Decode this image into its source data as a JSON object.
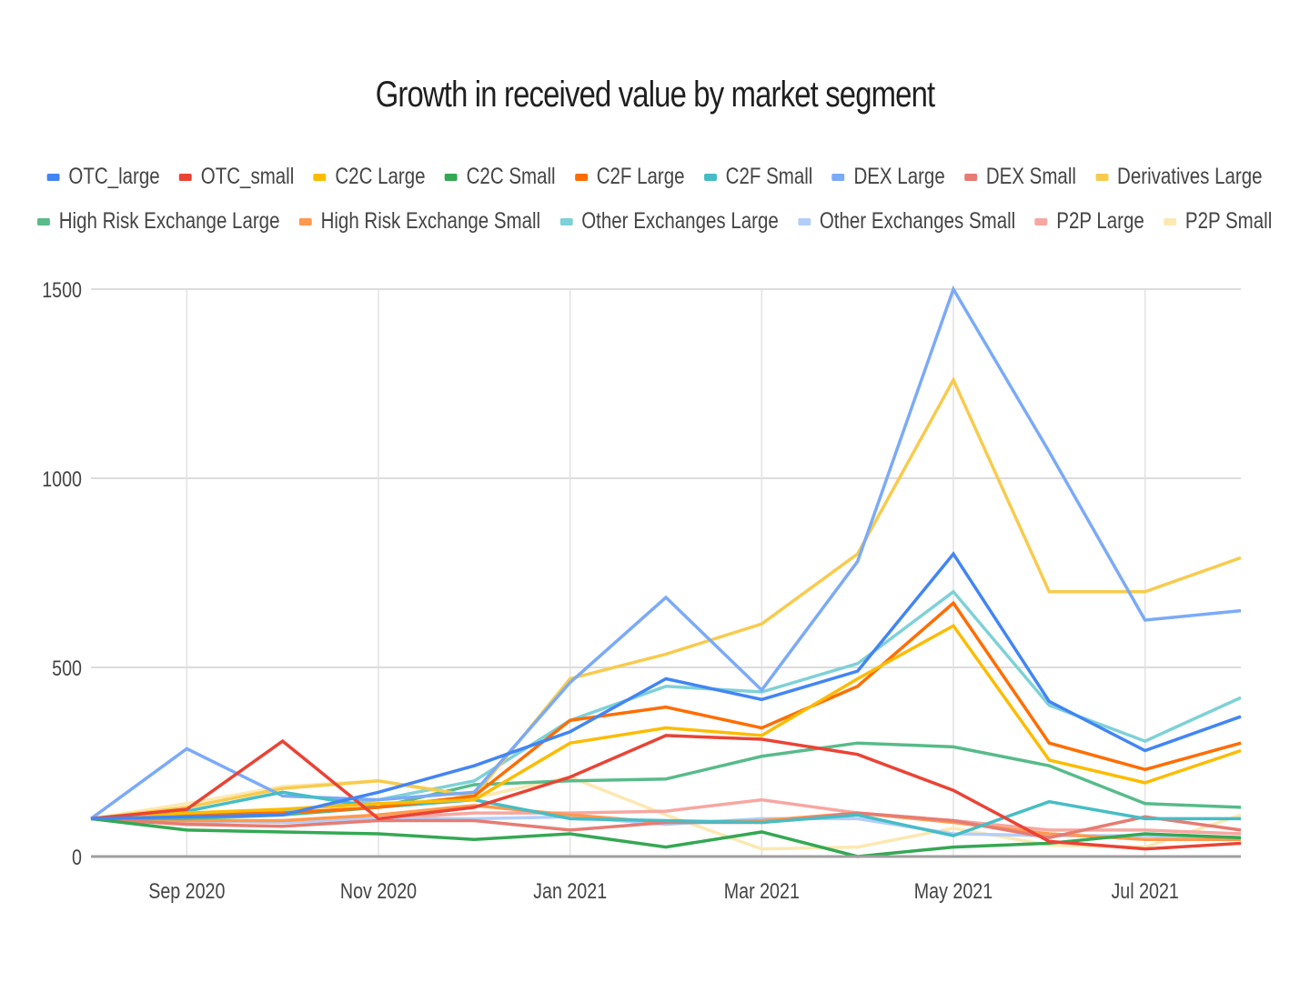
{
  "chart_data": {
    "type": "line",
    "title": "Growth in received value by market segment",
    "xlabel": "",
    "ylabel": "",
    "ylim": [
      0,
      1500
    ],
    "yticks": [
      "0",
      "500",
      "1000",
      "1500"
    ],
    "ytick_values": [
      0,
      500,
      1000,
      1500
    ],
    "grid": true,
    "legend_position": "top",
    "x": [
      "Aug 2020",
      "Sep 2020",
      "Oct 2020",
      "Nov 2020",
      "Dec 2020",
      "Jan 2021",
      "Feb 2021",
      "Mar 2021",
      "Apr 2021",
      "May 2021",
      "Jun 2021",
      "Jul 2021",
      "Aug 2021"
    ],
    "xtick_labels": [
      {
        "index": 1,
        "label": "Sep 2020"
      },
      {
        "index": 3,
        "label": "Nov 2020"
      },
      {
        "index": 5,
        "label": "Jan 2021"
      },
      {
        "index": 7,
        "label": "Mar 2021"
      },
      {
        "index": 9,
        "label": "May 2021"
      },
      {
        "index": 11,
        "label": "Jul 2021"
      }
    ],
    "series": [
      {
        "name": "OTC_large",
        "color": "#4285f4",
        "values": [
          100,
          105,
          110,
          170,
          240,
          330,
          470,
          415,
          490,
          800,
          410,
          280,
          370
        ]
      },
      {
        "name": "OTC_small",
        "color": "#ea4335",
        "values": [
          100,
          125,
          305,
          100,
          130,
          210,
          320,
          310,
          270,
          175,
          40,
          20,
          35
        ]
      },
      {
        "name": "C2C Large",
        "color": "#fbbc04",
        "values": [
          100,
          115,
          125,
          140,
          150,
          300,
          340,
          320,
          470,
          610,
          255,
          195,
          280
        ]
      },
      {
        "name": "C2C Small",
        "color": "#34a853",
        "values": [
          100,
          70,
          65,
          60,
          45,
          60,
          25,
          65,
          0,
          25,
          35,
          60,
          50
        ]
      },
      {
        "name": "C2F Large",
        "color": "#ff6d01",
        "values": [
          100,
          110,
          115,
          130,
          160,
          360,
          395,
          340,
          450,
          670,
          300,
          230,
          300
        ]
      },
      {
        "name": "C2F Small",
        "color": "#46bdc6",
        "values": [
          100,
          120,
          170,
          130,
          150,
          100,
          95,
          90,
          110,
          55,
          145,
          100,
          100
        ]
      },
      {
        "name": "DEX Large",
        "color": "#7baaf7",
        "values": [
          100,
          285,
          160,
          150,
          170,
          460,
          685,
          440,
          780,
          1500,
          1070,
          625,
          650
        ]
      },
      {
        "name": "DEX Small",
        "color": "#e67c73",
        "values": [
          100,
          85,
          80,
          95,
          95,
          70,
          90,
          90,
          115,
          95,
          50,
          105,
          70
        ]
      },
      {
        "name": "Derivatives Large",
        "color": "#f7cb4d",
        "values": [
          100,
          130,
          180,
          200,
          160,
          470,
          535,
          615,
          800,
          1260,
          700,
          700,
          790
        ]
      },
      {
        "name": "High Risk Exchange Large",
        "color": "#57bb8a",
        "values": [
          100,
          100,
          110,
          130,
          190,
          200,
          205,
          265,
          300,
          290,
          240,
          140,
          130
        ]
      },
      {
        "name": "High Risk Exchange Small",
        "color": "#ff994d",
        "values": [
          100,
          95,
          95,
          110,
          135,
          110,
          90,
          95,
          115,
          90,
          60,
          45,
          45
        ]
      },
      {
        "name": "Other Exchanges Large",
        "color": "#7ed1d7",
        "values": [
          100,
          110,
          120,
          150,
          200,
          360,
          450,
          435,
          510,
          700,
          400,
          305,
          420
        ]
      },
      {
        "name": "Other Exchanges Small",
        "color": "#b3cefb",
        "values": [
          100,
          95,
          90,
          100,
          100,
          105,
          85,
          100,
          100,
          60,
          55,
          55,
          45
        ]
      },
      {
        "name": "P2P Large",
        "color": "#f7a7a1",
        "values": [
          100,
          90,
          95,
          100,
          115,
          115,
          120,
          150,
          115,
          95,
          70,
          70,
          60
        ]
      },
      {
        "name": "P2P Small",
        "color": "#fce8b2",
        "values": [
          100,
          140,
          185,
          200,
          155,
          210,
          110,
          20,
          25,
          75,
          30,
          25,
          110
        ]
      }
    ]
  }
}
